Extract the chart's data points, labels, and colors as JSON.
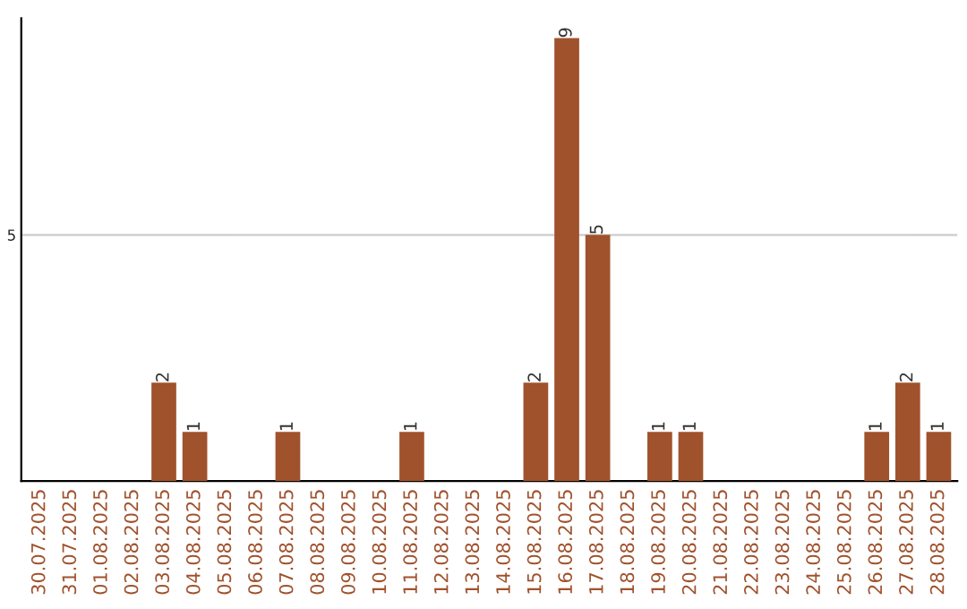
{
  "chart_data": {
    "type": "bar",
    "categories": [
      "30.07.2025",
      "31.07.2025",
      "01.08.2025",
      "02.08.2025",
      "03.08.2025",
      "04.08.2025",
      "05.08.2025",
      "06.08.2025",
      "07.08.2025",
      "08.08.2025",
      "09.08.2025",
      "10.08.2025",
      "11.08.2025",
      "12.08.2025",
      "13.08.2025",
      "14.08.2025",
      "15.08.2025",
      "16.08.2025",
      "17.08.2025",
      "18.08.2025",
      "19.08.2025",
      "20.08.2025",
      "21.08.2025",
      "22.08.2025",
      "23.08.2025",
      "24.08.2025",
      "25.08.2025",
      "26.08.2025",
      "27.08.2025",
      "28.08.2025"
    ],
    "values": [
      0,
      0,
      0,
      0,
      2,
      1,
      0,
      0,
      1,
      0,
      0,
      0,
      1,
      0,
      0,
      0,
      2,
      9,
      5,
      0,
      1,
      1,
      0,
      0,
      0,
      0,
      0,
      1,
      2,
      1
    ],
    "value_labels": [
      null,
      null,
      null,
      null,
      "2",
      "1",
      null,
      null,
      "1",
      null,
      null,
      null,
      "1",
      null,
      null,
      null,
      "2",
      "9",
      "5",
      null,
      "1",
      "1",
      null,
      null,
      null,
      null,
      null,
      "1",
      "2",
      "1"
    ],
    "color": "#a0522d",
    "ylim": [
      0,
      9.4
    ],
    "yticks": [
      5
    ],
    "grid": "y"
  }
}
